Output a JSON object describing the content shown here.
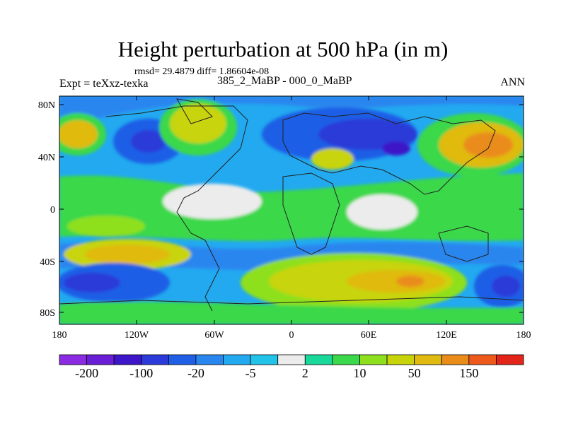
{
  "title": "Height perturbation at 500 hPa (in m)",
  "stats_line": "rmsd= 29.4879 diff= 1.86604e-08",
  "experiment": "Expt = teXxz-texka",
  "comparison": "385_2_MaBP - 000_0_MaBP",
  "season": "ANN",
  "lat_ticks": [
    "80N",
    "40N",
    "0",
    "40S",
    "80S"
  ],
  "lon_ticks": [
    "180",
    "120W",
    "60W",
    "0",
    "60E",
    "120E",
    "180"
  ],
  "colorbar": {
    "colors": [
      "#8a2be2",
      "#6a1fd6",
      "#3c16c8",
      "#2b3ad8",
      "#1f5fe6",
      "#2a86ef",
      "#22a9f0",
      "#21c3e8",
      "#ececec",
      "#18d89a",
      "#3ad84a",
      "#8ee01f",
      "#c8d40a",
      "#e0ba10",
      "#ea8c1a",
      "#ee5a1c",
      "#e32418"
    ],
    "labels": [
      "-200",
      "-100",
      "-20",
      "-5",
      "2",
      "10",
      "50",
      "150"
    ]
  }
}
